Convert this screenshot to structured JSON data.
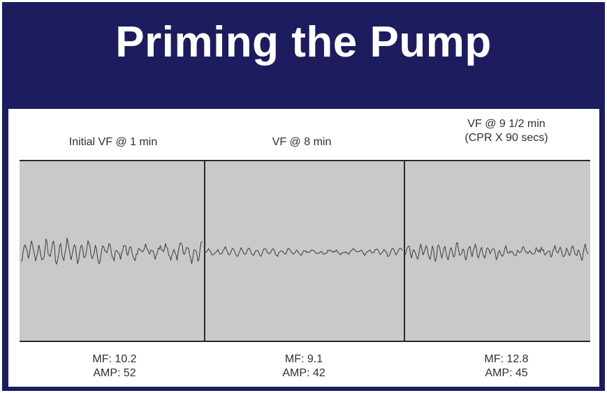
{
  "slide": {
    "title": "Priming the Pump",
    "background_color": "#1c1c5e",
    "strip_color": "#c9c9c9"
  },
  "panels": [
    {
      "header_line1": "Initial VF @ 1 min",
      "header_line2": "",
      "mf": "MF: 10.2",
      "amp": "AMP: 52"
    },
    {
      "header_line1": "VF @ 8 min",
      "header_line2": "",
      "mf": "MF: 9.1",
      "amp": "AMP: 42"
    },
    {
      "header_line1": "VF @ 9 1/2 min",
      "header_line2": "(CPR X 90 secs)",
      "mf": "MF: 12.8",
      "amp": "AMP: 45"
    }
  ]
}
